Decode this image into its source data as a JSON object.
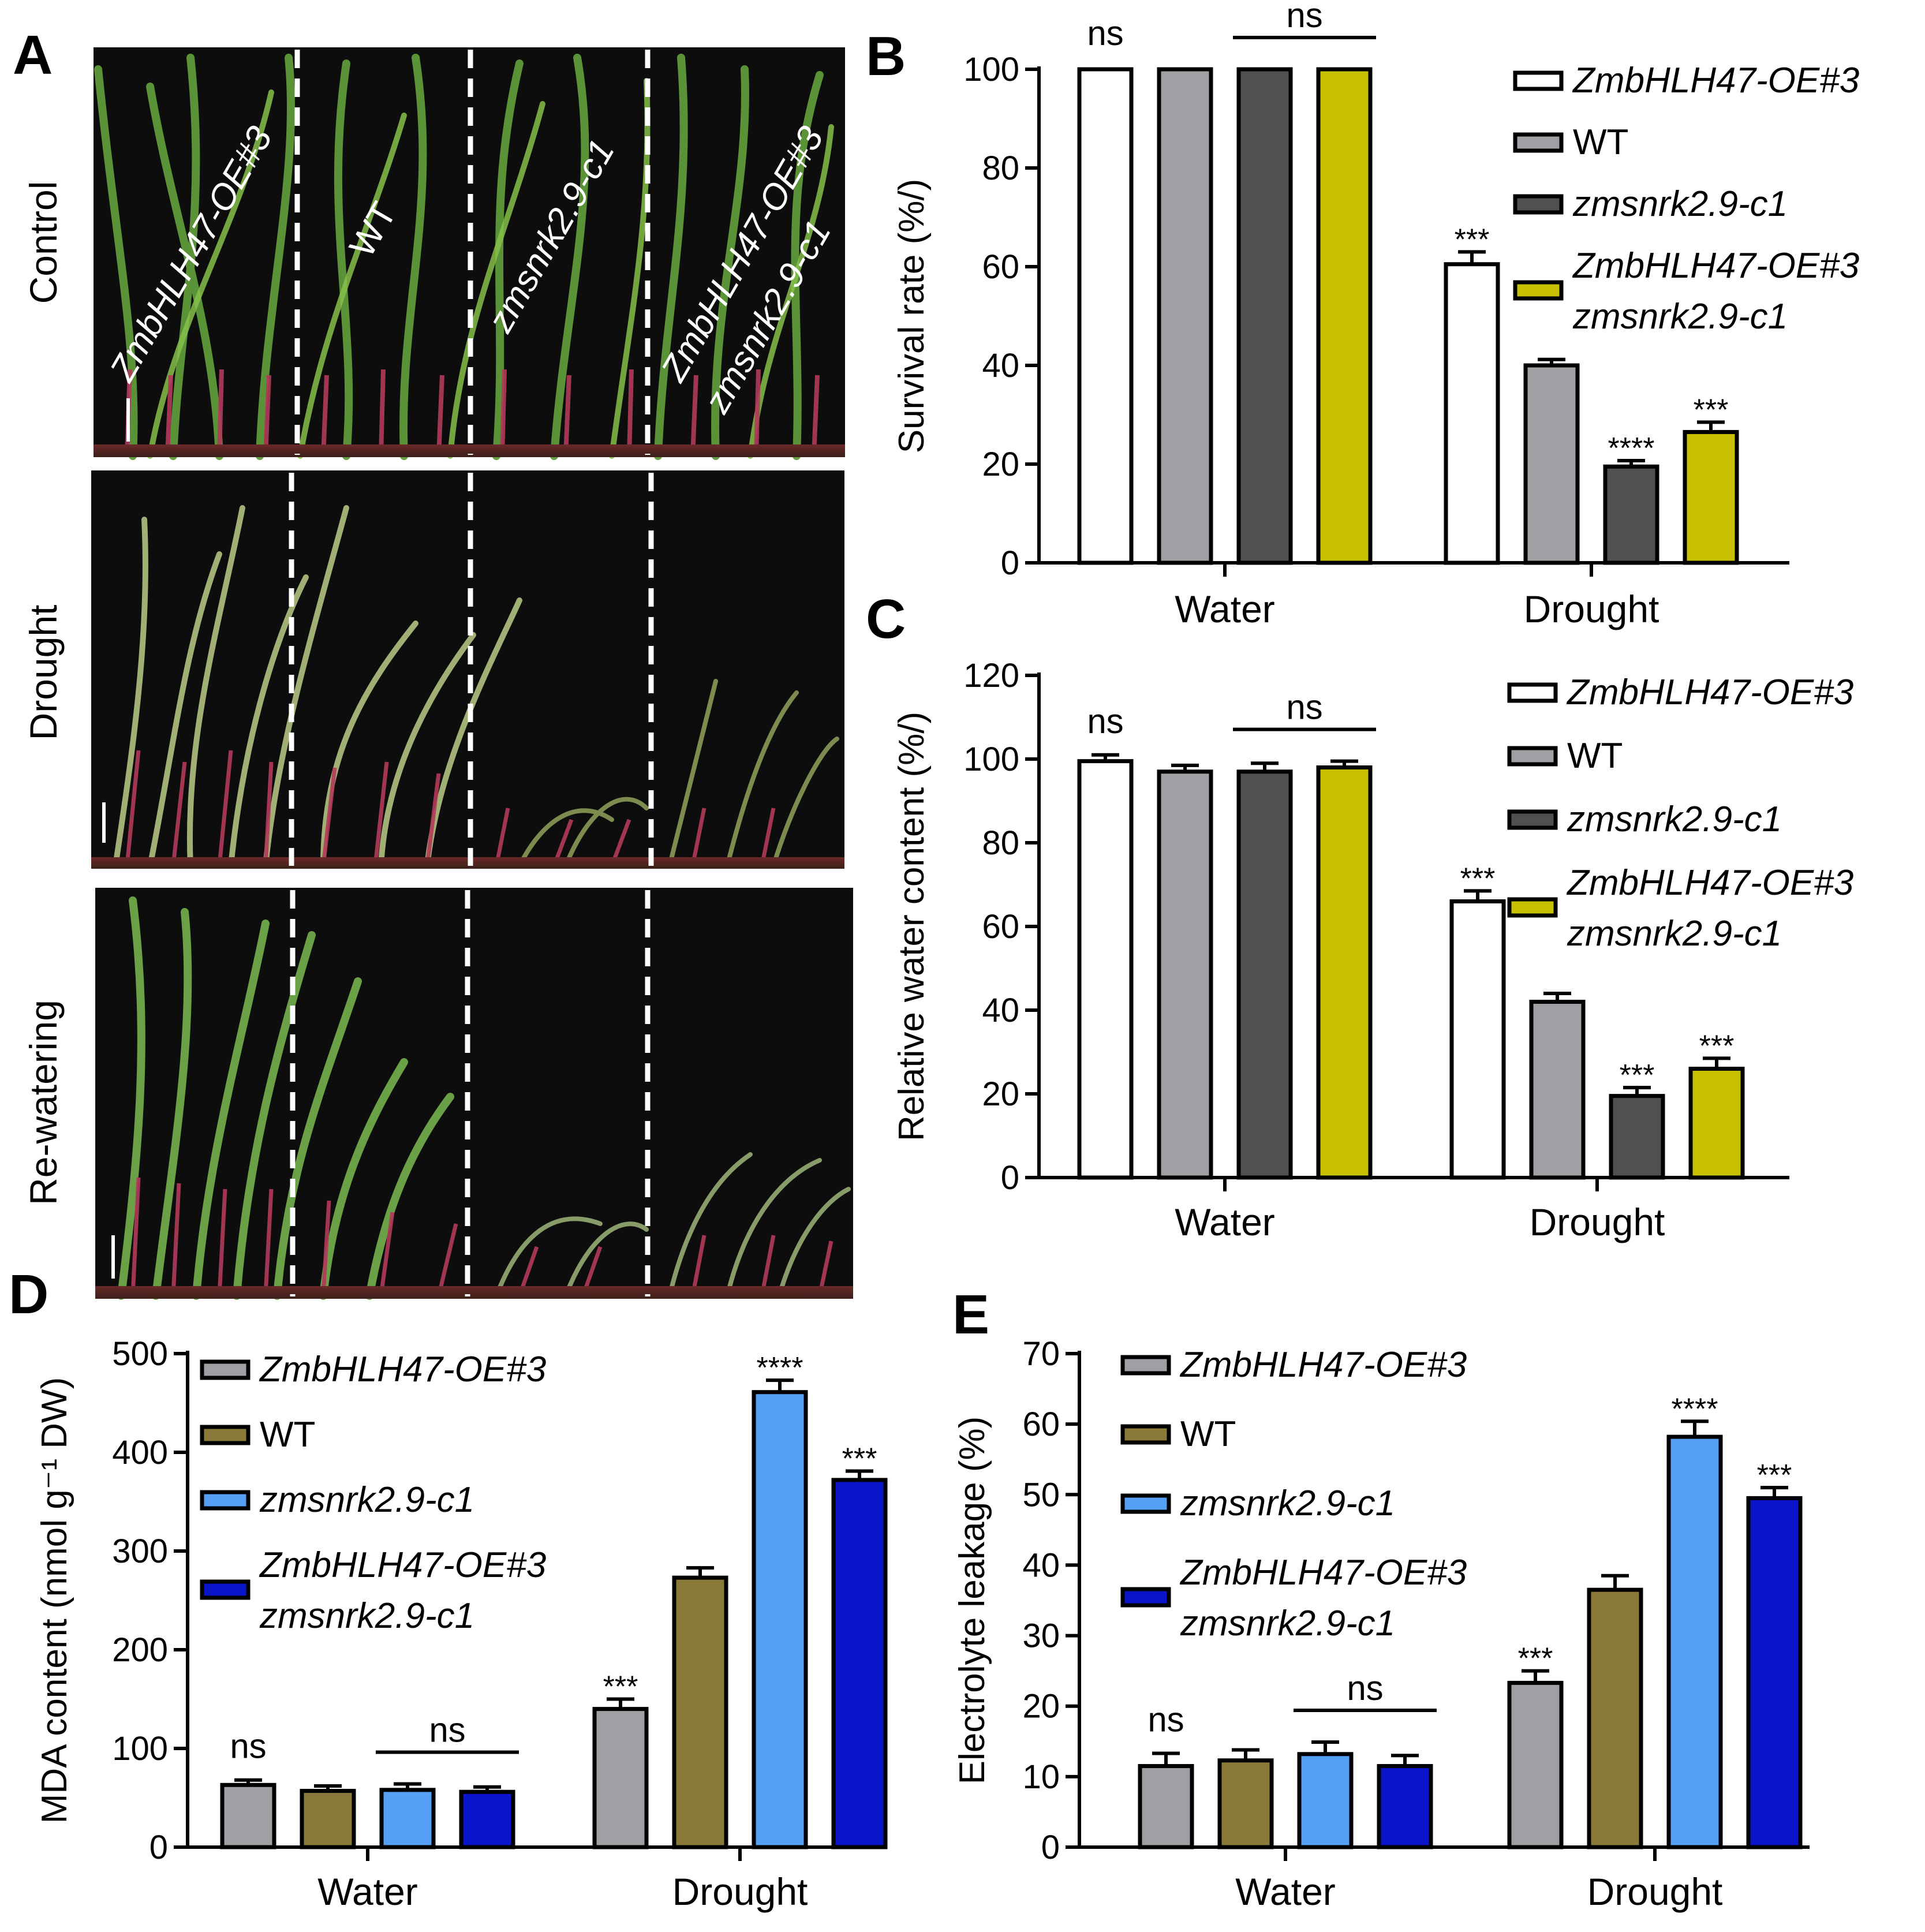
{
  "photos": {
    "letter": "A",
    "rows": [
      "Control",
      "Drought",
      "Re-watering"
    ],
    "genotype_labels": [
      [
        "ZmbHLH47-OE#3"
      ],
      [
        "WT"
      ],
      [
        "zmsnrk2.9-c1"
      ],
      [
        "ZmbHLH47-OE#3",
        "zmsnrk2.9-c1"
      ]
    ]
  },
  "chart_data": [
    {
      "id": "B",
      "type": "bar",
      "letter": "B",
      "categories": [
        "Water",
        "Drought"
      ],
      "ylabel": "Survival rate (%/)",
      "ylim": [
        0,
        100
      ],
      "yticks": [
        0,
        20,
        40,
        60,
        80,
        100
      ],
      "legend_position": "top-right",
      "legend": [
        {
          "lines": [
            "ZmbHLH47-OE#3"
          ],
          "italic": true
        },
        {
          "lines": [
            "WT"
          ],
          "italic": false
        },
        {
          "lines": [
            "zmsnrk2.9-c1"
          ],
          "italic": true
        },
        {
          "lines": [
            "ZmbHLH47-OE#3",
            "zmsnrk2.9-c1"
          ],
          "italic": true
        }
      ],
      "colors": [
        "#ffffff",
        "#a0a0a4",
        "#505050",
        "#c6c000"
      ],
      "series": [
        {
          "values": [
            100,
            60.5
          ],
          "errors": [
            0,
            2.5
          ]
        },
        {
          "values": [
            100,
            40
          ],
          "errors": [
            0,
            1.2
          ]
        },
        {
          "values": [
            100,
            19.5
          ],
          "errors": [
            0,
            1.2
          ]
        },
        {
          "values": [
            100,
            26.5
          ],
          "errors": [
            0,
            2.0
          ]
        }
      ],
      "annotations": {
        "groups": [
          {
            "marks": [
              "ns",
              "",
              "",
              ""
            ],
            "bracket": {
              "from": 2,
              "to": 3,
              "label": "ns"
            }
          },
          {
            "marks": [
              "***",
              "",
              "****",
              "***"
            ],
            "bracket": null
          }
        ]
      }
    },
    {
      "id": "C",
      "type": "bar",
      "letter": "C",
      "categories": [
        "Water",
        "Drought"
      ],
      "ylabel": "Relative water content (%/)",
      "ylim": [
        0,
        120
      ],
      "yticks": [
        0,
        20,
        40,
        60,
        80,
        100,
        120
      ],
      "legend_position": "top-right",
      "legend": [
        {
          "lines": [
            "ZmbHLH47-OE#3"
          ],
          "italic": true
        },
        {
          "lines": [
            "WT"
          ],
          "italic": false
        },
        {
          "lines": [
            "zmsnrk2.9-c1"
          ],
          "italic": true
        },
        {
          "lines": [
            "ZmbHLH47-OE#3",
            "zmsnrk2.9-c1"
          ],
          "italic": true
        }
      ],
      "colors": [
        "#ffffff",
        "#a0a0a4",
        "#505050",
        "#c6c000"
      ],
      "series": [
        {
          "values": [
            99.5,
            66
          ],
          "errors": [
            1.5,
            2.5
          ]
        },
        {
          "values": [
            97,
            42
          ],
          "errors": [
            1.5,
            2.0
          ]
        },
        {
          "values": [
            97,
            19.5
          ],
          "errors": [
            2.0,
            2.0
          ]
        },
        {
          "values": [
            98,
            26
          ],
          "errors": [
            1.5,
            2.5
          ]
        }
      ],
      "annotations": {
        "groups": [
          {
            "marks": [
              "ns",
              "",
              "",
              ""
            ],
            "bracket": {
              "from": 2,
              "to": 3,
              "label": "ns"
            }
          },
          {
            "marks": [
              "***",
              "",
              "***",
              "***"
            ],
            "bracket": null
          }
        ]
      }
    },
    {
      "id": "D",
      "type": "bar",
      "letter": "D",
      "categories": [
        "Water",
        "Drought"
      ],
      "ylabel": "MDA  content (nmol g⁻¹ DW)",
      "ylim": [
        0,
        500
      ],
      "yticks": [
        0,
        100,
        200,
        300,
        400,
        500
      ],
      "legend_position": "top-left",
      "legend": [
        {
          "lines": [
            "ZmbHLH47-OE#3"
          ],
          "italic": true
        },
        {
          "lines": [
            "WT"
          ],
          "italic": false
        },
        {
          "lines": [
            "zmsnrk2.9-c1"
          ],
          "italic": true
        },
        {
          "lines": [
            "ZmbHLH47-OE#3",
            "zmsnrk2.9-c1"
          ],
          "italic": true
        }
      ],
      "colors": [
        "#a0a0a4",
        "#8a7a3a",
        "#55a0f5",
        "#0a14c8"
      ],
      "series": [
        {
          "values": [
            63,
            140
          ],
          "errors": [
            5,
            10
          ]
        },
        {
          "values": [
            57,
            273
          ],
          "errors": [
            5,
            10
          ]
        },
        {
          "values": [
            58,
            461
          ],
          "errors": [
            6,
            12
          ]
        },
        {
          "values": [
            56,
            372
          ],
          "errors": [
            5,
            9
          ]
        }
      ],
      "annotations": {
        "groups": [
          {
            "marks": [
              "ns",
              "",
              "",
              ""
            ],
            "bracket": {
              "from": 2,
              "to": 3,
              "label": "ns"
            }
          },
          {
            "marks": [
              "***",
              "",
              "****",
              "***"
            ],
            "bracket": null
          }
        ]
      }
    },
    {
      "id": "E",
      "type": "bar",
      "letter": "E",
      "categories": [
        "Water",
        "Drought"
      ],
      "ylabel": "Electrolyte leakage (%)",
      "ylim": [
        0,
        70
      ],
      "yticks": [
        0,
        10,
        20,
        30,
        40,
        50,
        60,
        70
      ],
      "legend_position": "top-left",
      "legend": [
        {
          "lines": [
            "ZmbHLH47-OE#3"
          ],
          "italic": true
        },
        {
          "lines": [
            "WT"
          ],
          "italic": false
        },
        {
          "lines": [
            "zmsnrk2.9-c1"
          ],
          "italic": true
        },
        {
          "lines": [
            "ZmbHLH47-OE#3",
            "zmsnrk2.9-c1"
          ],
          "italic": true
        }
      ],
      "colors": [
        "#a0a0a4",
        "#8a7a3a",
        "#55a0f5",
        "#0a14c8"
      ],
      "series": [
        {
          "values": [
            11.5,
            23.3
          ],
          "errors": [
            1.8,
            1.7
          ]
        },
        {
          "values": [
            12.3,
            36.5
          ],
          "errors": [
            1.5,
            2.0
          ]
        },
        {
          "values": [
            13.2,
            58.2
          ],
          "errors": [
            1.7,
            2.2
          ]
        },
        {
          "values": [
            11.5,
            49.5
          ],
          "errors": [
            1.5,
            1.5
          ]
        }
      ],
      "annotations": {
        "groups": [
          {
            "marks": [
              "ns",
              "",
              "",
              ""
            ],
            "bracket": {
              "from": 2,
              "to": 3,
              "label": "ns"
            }
          },
          {
            "marks": [
              "***",
              "",
              "****",
              "***"
            ],
            "bracket": null
          }
        ]
      }
    }
  ]
}
